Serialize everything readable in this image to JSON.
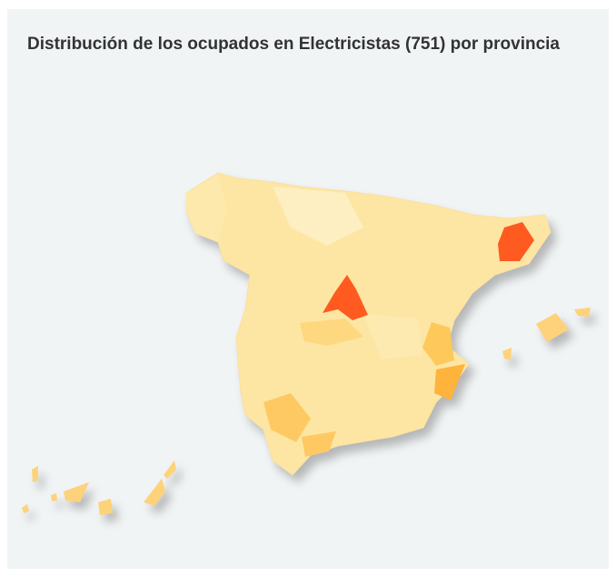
{
  "title": "Distribución de los ocupados en Electricistas (751) por provincia"
}
